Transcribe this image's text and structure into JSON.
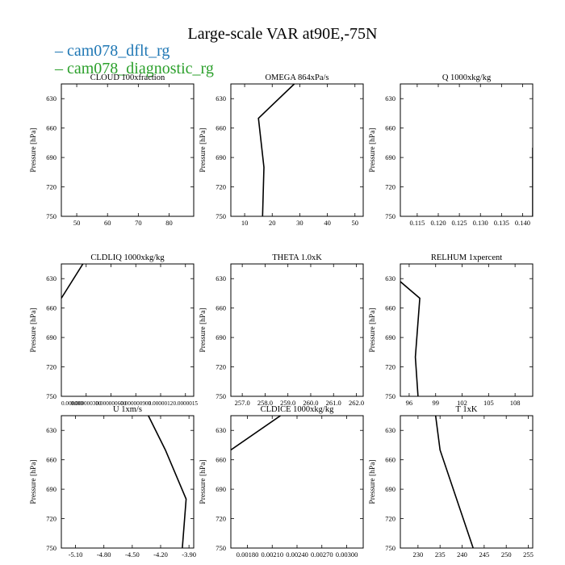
{
  "title": "Large-scale VAR at90E,-75N",
  "legend": [
    {
      "name": "cam078_dflt_rg",
      "color": "#1f77b4"
    },
    {
      "name": "cam078_diagnostic_rg",
      "color": "#2ca02c"
    }
  ],
  "chart_data": [
    {
      "type": "line",
      "title": "CLOUD  100xfraction",
      "ylabel": "Pressure [hPa]",
      "ylim": [
        750,
        615
      ],
      "yticks": [
        630,
        660,
        690,
        720,
        750
      ],
      "xlim": [
        45,
        88
      ],
      "xticks": [
        50,
        60,
        70,
        80
      ],
      "xticklabels": [
        "50",
        "60",
        "70",
        "80"
      ],
      "series": []
    },
    {
      "type": "line",
      "title": "OMEGA  864xPa/s",
      "ylabel": "Pressure [hPa]",
      "ylim": [
        750,
        615
      ],
      "yticks": [
        630,
        660,
        690,
        720,
        750
      ],
      "xlim": [
        5,
        53
      ],
      "xticks": [
        10,
        20,
        30,
        40,
        50
      ],
      "xticklabels": [
        "10",
        "20",
        "30",
        "40",
        "50"
      ],
      "series": [
        {
          "color": "#000000",
          "x": [
            28,
            15,
            17,
            16.5
          ],
          "y": [
            615,
            650,
            700,
            750
          ]
        }
      ]
    },
    {
      "type": "line",
      "title": "Q  1000xkg/kg",
      "ylabel": "Pressure [hPa]",
      "ylim": [
        750,
        615
      ],
      "yticks": [
        630,
        660,
        690,
        720,
        750
      ],
      "xlim": [
        0.111,
        0.1424
      ],
      "xticks": [
        0.115,
        0.12,
        0.125,
        0.13,
        0.135,
        0.14
      ],
      "xticklabels": [
        "0.115",
        "0.120",
        "0.125",
        "0.130",
        "0.135",
        "0.140"
      ],
      "series": [
        {
          "color": "#000000",
          "x": [
            0.1424,
            0.1424
          ],
          "y": [
            680,
            750
          ]
        }
      ]
    },
    {
      "type": "line",
      "title": "CLDLIQ  1000xkg/kg",
      "ylabel": "Pressure [hPa]",
      "ylim": [
        750,
        615
      ],
      "yticks": [
        630,
        660,
        690,
        720,
        750
      ],
      "xlim": [
        0,
        1.6e-06
      ],
      "xticks": [
        0,
        3e-07,
        6e-07,
        9e-07,
        1.2e-06,
        1.5e-06
      ],
      "xticklabels": [
        "0.000000",
        "0.000000300",
        "0.000000600",
        "0.000000900",
        "0.0000012",
        "0.0000015"
      ],
      "series": [
        {
          "color": "#000000",
          "x": [
            2.6e-07,
            0
          ],
          "y": [
            615,
            650
          ]
        }
      ]
    },
    {
      "type": "line",
      "title": "THETA  1.0xK",
      "ylabel": "Pressure [hPa]",
      "ylim": [
        750,
        615
      ],
      "yticks": [
        630,
        660,
        690,
        720,
        750
      ],
      "xlim": [
        256.5,
        262.3
      ],
      "xticks": [
        257,
        258,
        259,
        260,
        261,
        262
      ],
      "xticklabels": [
        "257.0",
        "258.0",
        "259.0",
        "260.0",
        "261.0",
        "262.0"
      ],
      "series": []
    },
    {
      "type": "line",
      "title": "RELHUM  1xpercent",
      "ylabel": "Pressure [hPa]",
      "ylim": [
        750,
        615
      ],
      "yticks": [
        630,
        660,
        690,
        720,
        750
      ],
      "xlim": [
        95,
        110
      ],
      "xticks": [
        96,
        99,
        102,
        105,
        108
      ],
      "xticklabels": [
        "96",
        "99",
        "102",
        "105",
        "108"
      ],
      "series": [
        {
          "color": "#000000",
          "x": [
            95,
            97.2,
            96.7,
            97
          ],
          "y": [
            633,
            650,
            710,
            750
          ]
        }
      ]
    },
    {
      "type": "line",
      "title": "U  1xm/s",
      "ylabel": "Pressure [hPa]",
      "ylim": [
        750,
        615
      ],
      "yticks": [
        630,
        660,
        690,
        720,
        750
      ],
      "xlim": [
        -5.25,
        -3.85
      ],
      "xticks": [
        -5.1,
        -4.8,
        -4.5,
        -4.2,
        -3.9
      ],
      "xticklabels": [
        "-5.10",
        "-4.80",
        "-4.50",
        "-4.20",
        "-3.90"
      ],
      "series": [
        {
          "color": "#000000",
          "x": [
            -4.33,
            -4.15,
            -3.93,
            -3.97
          ],
          "y": [
            615,
            650,
            700,
            750
          ]
        }
      ]
    },
    {
      "type": "line",
      "title": "CLDICE  1000xkg/kg",
      "ylabel": "Pressure [hPa]",
      "ylim": [
        750,
        615
      ],
      "yticks": [
        630,
        660,
        690,
        720,
        750
      ],
      "xlim": [
        0.0016,
        0.0032
      ],
      "xticks": [
        0.0018,
        0.0021,
        0.0024,
        0.0027,
        0.003
      ],
      "xticklabels": [
        "0.00180",
        "0.00210",
        "0.00240",
        "0.00270",
        "0.00300"
      ],
      "series": [
        {
          "color": "#000000",
          "x": [
            0.0022,
            0.0016
          ],
          "y": [
            615,
            650
          ]
        }
      ]
    },
    {
      "type": "line",
      "title": "T  1xK",
      "ylabel": "Pressure [hPa]",
      "ylim": [
        750,
        615
      ],
      "yticks": [
        630,
        660,
        690,
        720,
        750
      ],
      "xlim": [
        226,
        256
      ],
      "xticks": [
        230,
        235,
        240,
        245,
        250,
        255
      ],
      "xticklabels": [
        "230",
        "235",
        "240",
        "245",
        "250",
        "255"
      ],
      "series": [
        {
          "color": "#000000",
          "x": [
            234,
            235,
            242.5
          ],
          "y": [
            615,
            650,
            750
          ]
        }
      ]
    }
  ]
}
